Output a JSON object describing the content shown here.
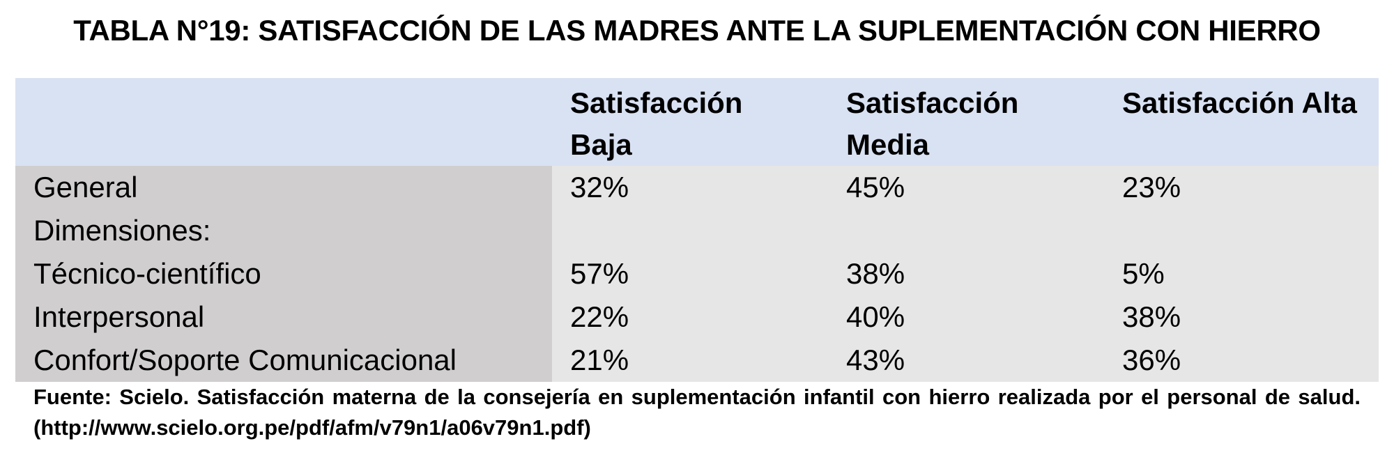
{
  "title": "TABLA N°19: SATISFACCIÓN DE LAS MADRES ANTE LA SUPLEMENTACIÓN CON HIERRO",
  "chart_data": {
    "type": "table",
    "title": "TABLA N°19: SATISFACCIÓN DE LAS MADRES ANTE LA SUPLEMENTACIÓN CON HIERRO",
    "columns": [
      "",
      "Satisfacción\nBaja",
      "Satisfacción\nMedia",
      "Satisfacción Alta"
    ],
    "rows": [
      {
        "label": "General",
        "values": [
          "32%",
          "45%",
          "23%"
        ]
      },
      {
        "label": "Dimensiones:",
        "values": [
          "",
          "",
          ""
        ]
      },
      {
        "label": "Técnico-científico",
        "values": [
          "57%",
          "38%",
          "5%"
        ]
      },
      {
        "label": "Interpersonal",
        "values": [
          "22%",
          "40%",
          "38%"
        ]
      },
      {
        "label": "Confort/Soporte Comunicacional",
        "values": [
          "21%",
          "43%",
          "36%"
        ]
      }
    ],
    "colors": {
      "header_bg": "#d9e2f3",
      "label_bg": "#d0cece",
      "value_bg": "#e7e6e6"
    }
  },
  "source": "Fuente: Scielo. Satisfacción materna de la consejería en suplementación infantil con hierro realizada por el personal de salud. (http://www.scielo.org.pe/pdf/afm/v79n1/a06v79n1.pdf)"
}
